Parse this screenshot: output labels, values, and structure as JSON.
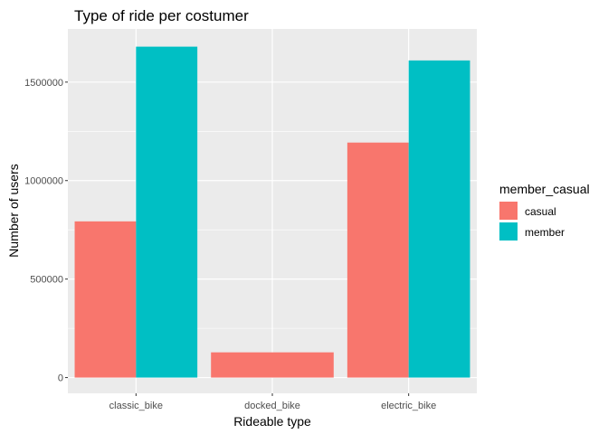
{
  "chart_data": {
    "type": "bar",
    "title": "Type of ride per costumer",
    "xlabel": "Rideable type",
    "ylabel": "Number of users",
    "categories": [
      "classic_bike",
      "docked_bike",
      "electric_bike"
    ],
    "series": [
      {
        "name": "casual",
        "values": [
          793000,
          128000,
          1193000
        ],
        "color": "#F8766D"
      },
      {
        "name": "member",
        "values": [
          1680000,
          null,
          1610000
        ],
        "color": "#00BFC4"
      }
    ],
    "ylim": [
      -80000,
      1770000
    ],
    "yticks": [
      0,
      500000,
      1000000,
      1500000
    ],
    "ytick_labels": [
      "0",
      "500000",
      "1000000",
      "1500000"
    ],
    "grid": true,
    "panel_background": "#EBEBEB",
    "legend": {
      "title": "member_casual",
      "position": "right"
    }
  }
}
